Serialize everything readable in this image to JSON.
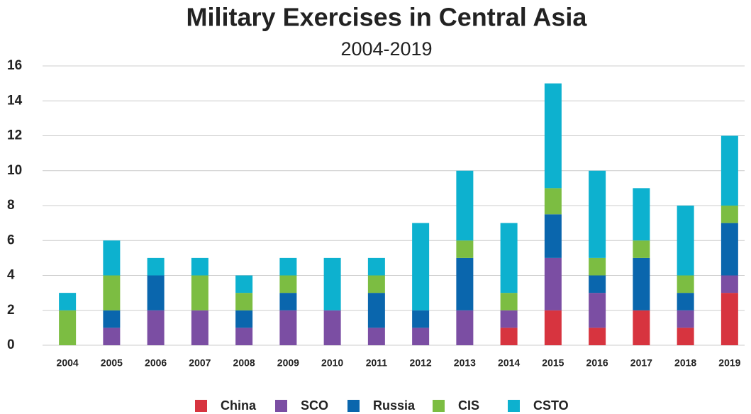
{
  "chart_data": {
    "type": "stacked_bar",
    "title": "Military Exercises in Central Asia",
    "subtitle": "2004-2019",
    "categories": [
      "2004",
      "2005",
      "2006",
      "2007",
      "2008",
      "2009",
      "2010",
      "2011",
      "2012",
      "2013",
      "2014",
      "2015",
      "2016",
      "2017",
      "2018",
      "2019"
    ],
    "series": [
      {
        "name": "China",
        "color": "#d7343f",
        "values": [
          0,
          0,
          0,
          0,
          0,
          0,
          0,
          0,
          0,
          0,
          1,
          2,
          1,
          2,
          1,
          3
        ]
      },
      {
        "name": "SCO",
        "color": "#7b4ea3",
        "values": [
          0,
          1,
          2,
          2,
          1,
          2,
          2,
          1,
          1,
          2,
          1,
          3,
          2,
          0,
          1,
          1
        ]
      },
      {
        "name": "Russia",
        "color": "#0a66ad",
        "values": [
          0,
          1,
          2,
          0,
          1,
          1,
          0,
          2,
          1,
          3,
          0,
          2.5,
          1,
          3,
          1,
          3
        ]
      },
      {
        "name": "CIS",
        "color": "#7cbd42",
        "values": [
          2,
          2,
          0,
          2,
          1,
          1,
          0,
          1,
          0,
          1,
          1,
          1.5,
          1,
          1,
          1,
          1
        ]
      },
      {
        "name": "CSTO",
        "color": "#0db1cf",
        "values": [
          1,
          2,
          1,
          1,
          1,
          1,
          3,
          1,
          5,
          4,
          4,
          6,
          5,
          3,
          4,
          4
        ]
      }
    ],
    "ylim": [
      0,
      16
    ],
    "yticks": [
      0,
      2,
      4,
      6,
      8,
      10,
      12,
      14,
      16
    ],
    "grid": true,
    "legend": "bottom"
  }
}
